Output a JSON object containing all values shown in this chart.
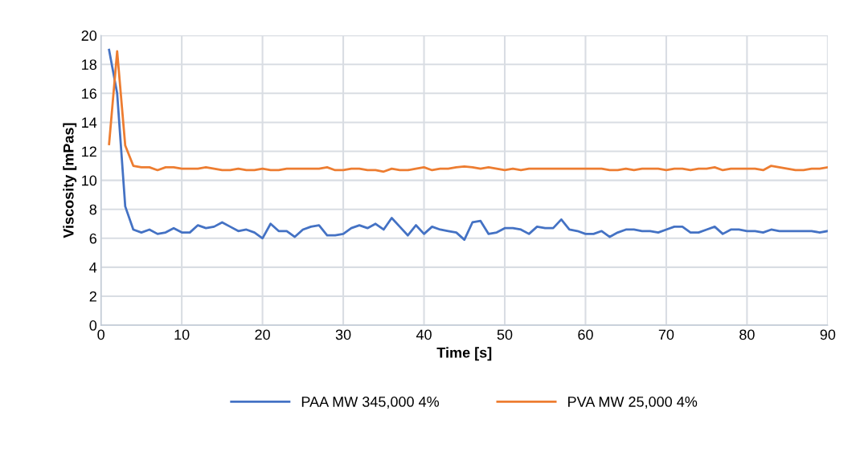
{
  "chart_data": {
    "type": "line",
    "xlabel": "Time [s]",
    "ylabel": "Viscosity [mPas]",
    "x": [
      1,
      2,
      3,
      4,
      5,
      6,
      7,
      8,
      9,
      10,
      11,
      12,
      13,
      14,
      15,
      16,
      17,
      18,
      19,
      20,
      21,
      22,
      23,
      24,
      25,
      26,
      27,
      28,
      29,
      30,
      31,
      32,
      33,
      34,
      35,
      36,
      37,
      38,
      39,
      40,
      41,
      42,
      43,
      44,
      45,
      46,
      47,
      48,
      49,
      50,
      51,
      52,
      53,
      54,
      55,
      56,
      57,
      58,
      59,
      60,
      61,
      62,
      63,
      64,
      65,
      66,
      67,
      68,
      69,
      70,
      71,
      72,
      73,
      74,
      75,
      76,
      77,
      78,
      79,
      80,
      81,
      82,
      83,
      84,
      85,
      86,
      87,
      88,
      89,
      90
    ],
    "series": [
      {
        "name": "PAA MW 345,000 4%",
        "color": "#4472c4",
        "values": [
          19.0,
          16.0,
          8.2,
          6.6,
          6.4,
          6.6,
          6.3,
          6.4,
          6.7,
          6.4,
          6.4,
          6.9,
          6.7,
          6.8,
          7.1,
          6.8,
          6.5,
          6.6,
          6.4,
          6.0,
          7.0,
          6.5,
          6.5,
          6.1,
          6.6,
          6.8,
          6.9,
          6.2,
          6.2,
          6.3,
          6.7,
          6.9,
          6.7,
          7.0,
          6.6,
          7.4,
          6.8,
          6.2,
          6.9,
          6.3,
          6.8,
          6.6,
          6.5,
          6.4,
          5.9,
          7.1,
          7.2,
          6.3,
          6.4,
          6.7,
          6.7,
          6.6,
          6.3,
          6.8,
          6.7,
          6.7,
          7.3,
          6.6,
          6.5,
          6.3,
          6.3,
          6.5,
          6.1,
          6.4,
          6.6,
          6.6,
          6.5,
          6.5,
          6.4,
          6.6,
          6.8,
          6.8,
          6.4,
          6.4,
          6.6,
          6.8,
          6.3,
          6.6,
          6.6,
          6.5,
          6.5,
          6.4,
          6.6,
          6.5,
          6.5,
          6.5,
          6.5,
          6.5,
          6.4,
          6.5
        ],
        "line_style": "solid"
      },
      {
        "name": "PVA MW 25,000 4%",
        "color": "#ed7d31",
        "values": [
          12.5,
          18.9,
          12.4,
          11.0,
          10.9,
          10.9,
          10.7,
          10.9,
          10.9,
          10.8,
          10.8,
          10.8,
          10.9,
          10.8,
          10.7,
          10.7,
          10.8,
          10.7,
          10.7,
          10.8,
          10.7,
          10.7,
          10.8,
          10.8,
          10.8,
          10.8,
          10.8,
          10.9,
          10.7,
          10.7,
          10.8,
          10.8,
          10.7,
          10.7,
          10.6,
          10.8,
          10.7,
          10.7,
          10.8,
          10.9,
          10.7,
          10.8,
          10.8,
          10.9,
          10.95,
          10.9,
          10.8,
          10.9,
          10.8,
          10.7,
          10.8,
          10.7,
          10.8,
          10.8,
          10.8,
          10.8,
          10.8,
          10.8,
          10.8,
          10.8,
          10.8,
          10.8,
          10.7,
          10.7,
          10.8,
          10.7,
          10.8,
          10.8,
          10.8,
          10.7,
          10.8,
          10.8,
          10.7,
          10.8,
          10.8,
          10.9,
          10.7,
          10.8,
          10.8,
          10.8,
          10.8,
          10.7,
          11.0,
          10.9,
          10.8,
          10.7,
          10.7,
          10.8,
          10.8,
          10.9
        ],
        "line_style": "solid"
      }
    ],
    "xlim": [
      0,
      90
    ],
    "xticks": [
      0,
      10,
      20,
      30,
      40,
      50,
      60,
      70,
      80,
      90
    ],
    "ylim": [
      0,
      20
    ],
    "yticks": [
      0,
      2,
      4,
      6,
      8,
      10,
      12,
      14,
      16,
      18,
      20
    ],
    "grid": true,
    "legend": "bottom",
    "marker": "none"
  }
}
